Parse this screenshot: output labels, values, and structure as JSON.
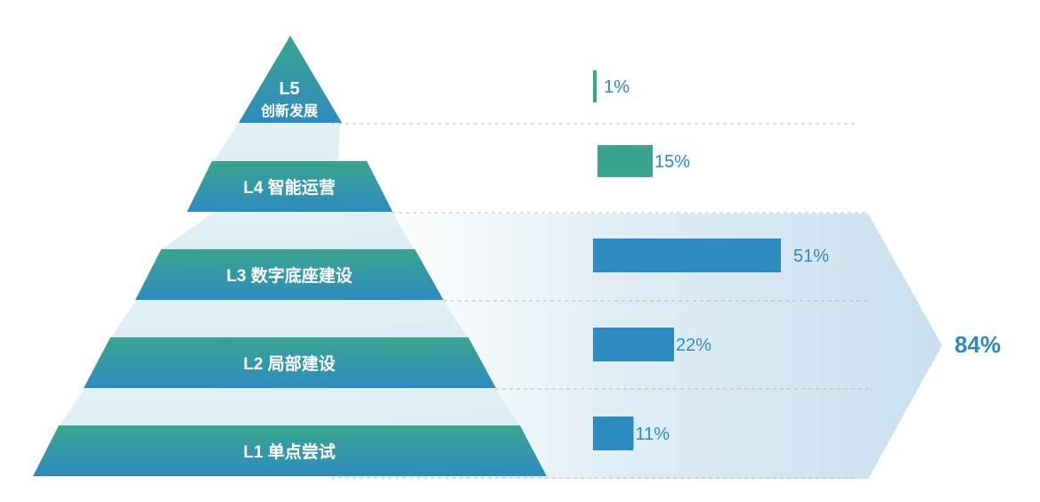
{
  "chart_data": {
    "type": "bar",
    "categories": [
      "L5 创新发展",
      "L4 智能运营",
      "L3 数字底座建设",
      "L2 局部建设",
      "L1 单点尝试"
    ],
    "levels": [
      {
        "code": "L5",
        "name": "创新发展",
        "value": 1,
        "label": "1%"
      },
      {
        "code": "L4",
        "name": "智能运营",
        "value": 15,
        "label": "15%"
      },
      {
        "code": "L3",
        "name": "数字底座建设",
        "value": 51,
        "label": "51%"
      },
      {
        "code": "L2",
        "name": "局部建设",
        "value": 22,
        "label": "22%"
      },
      {
        "code": "L1",
        "name": "单点尝试",
        "value": 11,
        "label": "11%"
      }
    ],
    "values": [
      1,
      15,
      51,
      22,
      11
    ],
    "total": {
      "value": 84,
      "label": "84%",
      "covers": [
        "L3",
        "L2",
        "L1"
      ]
    },
    "title": "",
    "xlabel": "",
    "ylabel": "",
    "xlim": [
      0,
      51
    ]
  },
  "colors": {
    "teal": "#3aa58e",
    "blue": "#2e8bc0",
    "total_text": "#2e86c1",
    "pct_text": "#2e8bbf"
  }
}
